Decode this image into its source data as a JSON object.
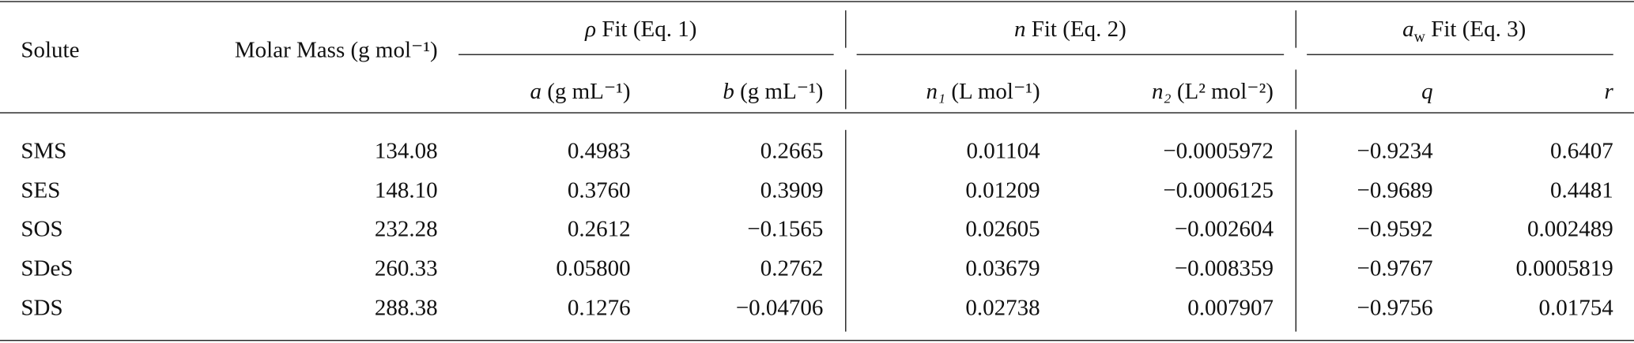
{
  "table": {
    "header": {
      "solute": "Solute",
      "molar_mass": "Molar Mass (g mol⁻¹)",
      "groups": [
        {
          "symbol": "ρ",
          "text": "Fit (Eq. 1)"
        },
        {
          "symbol": "n",
          "text": "Fit (Eq. 2)"
        },
        {
          "symbol": "a",
          "sub": "w",
          "text": "Fit (Eq. 3)"
        }
      ],
      "columns": [
        {
          "symbol": "a",
          "text": "(g mL⁻¹)"
        },
        {
          "symbol": "b",
          "text": "(g mL⁻¹)"
        },
        {
          "symbol": "n₁",
          "text": "(L mol⁻¹)"
        },
        {
          "symbol": "n₂",
          "text": "(L² mol⁻²)"
        },
        {
          "symbol": "q"
        },
        {
          "symbol": "r"
        }
      ]
    },
    "rows": [
      [
        "SMS",
        "134.08",
        "0.4983",
        "0.2665",
        "0.01104",
        "−0.0005972",
        "−0.9234",
        "0.6407"
      ],
      [
        "SES",
        "148.10",
        "0.3760",
        "0.3909",
        "0.01209",
        "−0.0006125",
        "−0.9689",
        "0.4481"
      ],
      [
        "SOS",
        "232.28",
        "0.2612",
        "−0.1565",
        "0.02605",
        "−0.002604",
        "−0.9592",
        "0.002489"
      ],
      [
        "SDeS",
        "260.33",
        "0.05800",
        "0.2762",
        "0.03679",
        "−0.008359",
        "−0.9767",
        "0.0005819"
      ],
      [
        "SDS",
        "288.38",
        "0.1276",
        "−0.04706",
        "0.02738",
        "0.007907",
        "−0.9756",
        "0.01754"
      ]
    ]
  }
}
